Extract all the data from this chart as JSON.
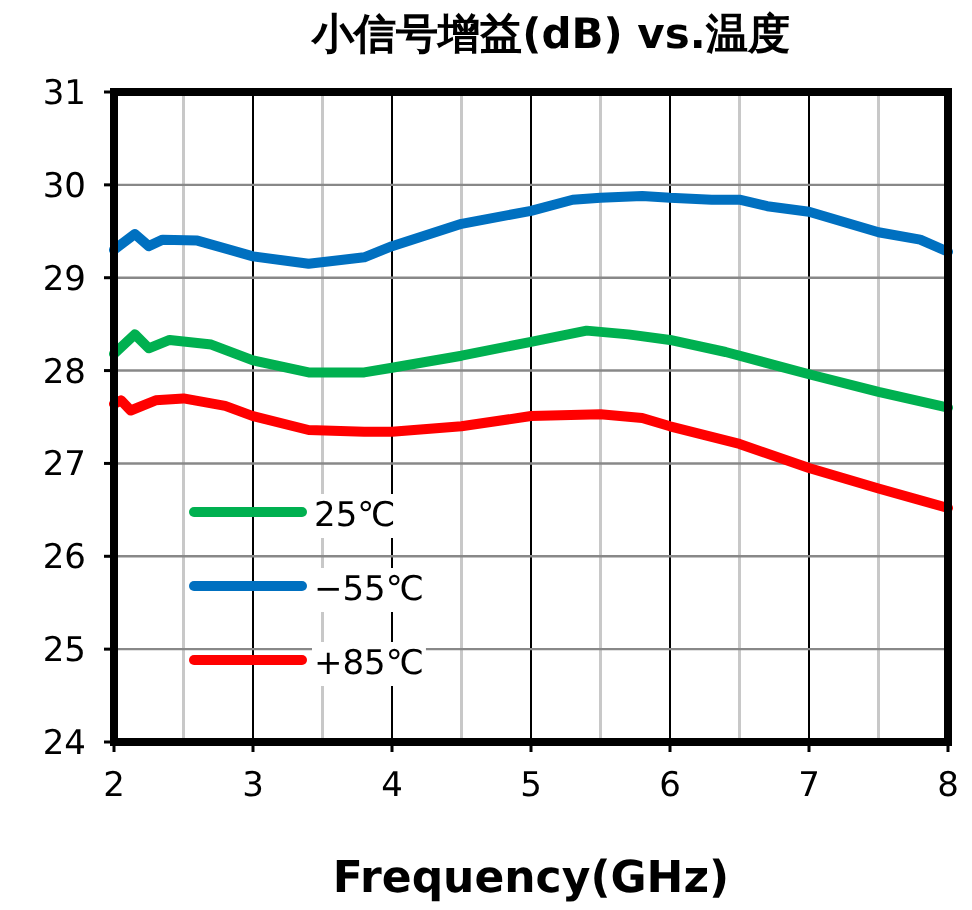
{
  "chart_data": {
    "type": "line",
    "title": "小信号增益(dB) vs.温度",
    "xlabel": "Frequency(GHz)",
    "xlim": [
      2,
      8
    ],
    "xticks": [
      2,
      3,
      4,
      5,
      6,
      7,
      8
    ],
    "ylim": [
      24,
      31
    ],
    "yticks": [
      24,
      25,
      26,
      27,
      28,
      29,
      30,
      31
    ],
    "grid": true,
    "legend": "bottom left",
    "line_style": "solid",
    "series": [
      {
        "name": "25℃",
        "color": "#00b050",
        "x": [
          2.0,
          2.15,
          2.25,
          2.4,
          2.7,
          3.0,
          3.4,
          3.8,
          4.0,
          4.5,
          5.0,
          5.4,
          5.7,
          6.0,
          6.4,
          7.0,
          7.5,
          8.0
        ],
        "values": [
          28.18,
          28.39,
          28.24,
          28.33,
          28.28,
          28.11,
          27.98,
          27.98,
          28.03,
          28.16,
          28.31,
          28.43,
          28.39,
          28.33,
          28.2,
          27.96,
          27.77,
          27.6
        ]
      },
      {
        "name": "−55℃",
        "color": "#0070c0",
        "x": [
          2.0,
          2.15,
          2.25,
          2.35,
          2.6,
          3.0,
          3.4,
          3.8,
          4.0,
          4.5,
          5.0,
          5.3,
          5.5,
          5.8,
          6.0,
          6.3,
          6.5,
          6.7,
          7.0,
          7.5,
          7.8,
          8.0
        ],
        "values": [
          29.3,
          29.47,
          29.34,
          29.41,
          29.4,
          29.23,
          29.15,
          29.22,
          29.34,
          29.58,
          29.72,
          29.84,
          29.86,
          29.88,
          29.86,
          29.84,
          29.84,
          29.77,
          29.71,
          29.49,
          29.41,
          29.28
        ]
      },
      {
        "name": "+85℃",
        "color": "#ff0000",
        "x": [
          2.0,
          2.05,
          2.12,
          2.3,
          2.5,
          2.8,
          3.0,
          3.4,
          3.8,
          4.0,
          4.5,
          5.0,
          5.5,
          5.8,
          6.0,
          6.5,
          7.0,
          7.5,
          8.0
        ],
        "values": [
          27.64,
          27.68,
          27.57,
          27.68,
          27.7,
          27.62,
          27.51,
          27.36,
          27.34,
          27.34,
          27.4,
          27.51,
          27.53,
          27.49,
          27.4,
          27.21,
          26.95,
          26.73,
          26.52
        ]
      }
    ]
  }
}
